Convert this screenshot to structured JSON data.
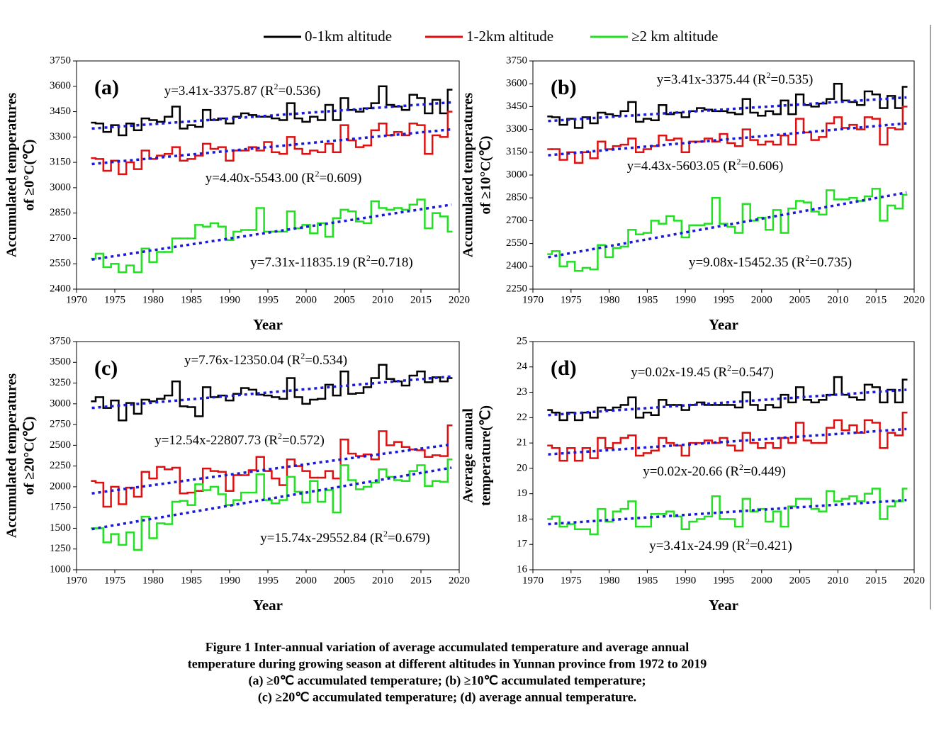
{
  "legend": [
    "0-1km altitude",
    "1-2km altitude",
    "≥2 km altitude"
  ],
  "chart_data": [
    {
      "type": "step",
      "panel": "(a)",
      "ylabel": [
        "Accumulated temperatures",
        "of ≥0°C(℃)"
      ],
      "xlabel": "Year",
      "xlim": [
        1970,
        2020
      ],
      "xticks": [
        1970,
        1975,
        1980,
        1985,
        1990,
        1995,
        2000,
        2005,
        2010,
        2015,
        2020
      ],
      "ylim": [
        2400,
        3750
      ],
      "yticks": [
        2400,
        2550,
        2700,
        2850,
        3000,
        3150,
        3300,
        3450,
        3600,
        3750
      ],
      "x0": 1972,
      "trend_color": "#1a1ad8",
      "series": [
        {
          "name": "0-1km altitude",
          "color": "#000000",
          "values": [
            3385,
            3380,
            3330,
            3370,
            3310,
            3380,
            3340,
            3410,
            3400,
            3390,
            3420,
            3480,
            3350,
            3370,
            3360,
            3460,
            3400,
            3410,
            3380,
            3420,
            3440,
            3430,
            3420,
            3420,
            3410,
            3400,
            3500,
            3410,
            3390,
            3420,
            3400,
            3490,
            3400,
            3530,
            3460,
            3450,
            3470,
            3500,
            3600,
            3490,
            3480,
            3460,
            3550,
            3530,
            3440,
            3520,
            3440,
            3580
          ],
          "trend": {
            "x": [
              1972,
              2019
            ],
            "values": [
              3350,
              3505
            ]
          },
          "equation": {
            "text": "y=3.41x-3375.87 (R",
            "sup": "2",
            "rest": "=0.536)"
          }
        },
        {
          "name": "1-2km altitude",
          "color": "#e01010",
          "values": [
            3175,
            3170,
            3100,
            3160,
            3080,
            3150,
            3110,
            3220,
            3170,
            3190,
            3200,
            3240,
            3160,
            3170,
            3190,
            3260,
            3230,
            3240,
            3160,
            3220,
            3220,
            3240,
            3220,
            3270,
            3210,
            3200,
            3300,
            3230,
            3200,
            3220,
            3210,
            3260,
            3210,
            3370,
            3280,
            3240,
            3250,
            3340,
            3380,
            3310,
            3330,
            3310,
            3380,
            3370,
            3200,
            3310,
            3300,
            3450
          ],
          "trend": {
            "x": [
              1972,
              2019
            ],
            "values": [
              3140,
              3345
            ]
          },
          "equation": {
            "text": "y=4.40x-5543.00 (R",
            "sup": "2",
            "rest": "=0.609)"
          }
        },
        {
          "name": "≥2 km altitude",
          "color": "#22e022",
          "values": [
            2580,
            2610,
            2530,
            2550,
            2500,
            2540,
            2500,
            2640,
            2560,
            2620,
            2620,
            2700,
            2700,
            2700,
            2780,
            2770,
            2790,
            2770,
            2690,
            2740,
            2750,
            2750,
            2880,
            2740,
            2740,
            2740,
            2860,
            2760,
            2780,
            2730,
            2790,
            2710,
            2820,
            2870,
            2860,
            2800,
            2790,
            2920,
            2880,
            2870,
            2880,
            2870,
            2900,
            2930,
            2760,
            2850,
            2830,
            2740
          ],
          "trend": {
            "x": [
              1972,
              2019
            ],
            "values": [
              2575,
              2900
            ]
          },
          "equation": {
            "text": "y=7.31x-11835.19 (R",
            "sup": "2",
            "rest": "=0.718)"
          }
        }
      ]
    },
    {
      "type": "step",
      "panel": "(b)",
      "ylabel": [
        "Accumulated temperatures",
        "of ≥10°C(℃)"
      ],
      "xlabel": "Year",
      "xlim": [
        1970,
        2020
      ],
      "xticks": [
        1970,
        1975,
        1980,
        1985,
        1990,
        1995,
        2000,
        2005,
        2010,
        2015,
        2020
      ],
      "ylim": [
        2250,
        3750
      ],
      "yticks": [
        2250,
        2400,
        2550,
        2700,
        2850,
        3000,
        3150,
        3300,
        3450,
        3600,
        3750
      ],
      "x0": 1972,
      "trend_color": "#1a1ad8",
      "series": [
        {
          "color": "#000000",
          "values": [
            3385,
            3380,
            3330,
            3370,
            3310,
            3380,
            3340,
            3410,
            3400,
            3390,
            3420,
            3480,
            3350,
            3370,
            3360,
            3460,
            3400,
            3410,
            3380,
            3420,
            3440,
            3430,
            3420,
            3420,
            3410,
            3400,
            3500,
            3410,
            3390,
            3420,
            3400,
            3490,
            3400,
            3530,
            3460,
            3450,
            3470,
            3500,
            3600,
            3490,
            3480,
            3460,
            3550,
            3530,
            3440,
            3520,
            3440,
            3580
          ],
          "trend": {
            "x": [
              1972,
              2019
            ],
            "values": [
              3355,
              3510
            ]
          },
          "equation": {
            "text": "y=3.41x-3375.44 (R",
            "sup": "2",
            "rest": "=0.535)"
          }
        },
        {
          "color": "#e01010",
          "values": [
            3170,
            3170,
            3100,
            3150,
            3080,
            3150,
            3110,
            3220,
            3170,
            3190,
            3200,
            3240,
            3150,
            3170,
            3190,
            3260,
            3230,
            3240,
            3150,
            3220,
            3220,
            3240,
            3220,
            3270,
            3210,
            3190,
            3300,
            3230,
            3200,
            3220,
            3200,
            3260,
            3200,
            3370,
            3280,
            3230,
            3250,
            3340,
            3380,
            3310,
            3330,
            3300,
            3380,
            3370,
            3200,
            3310,
            3300,
            3450
          ],
          "trend": {
            "x": [
              1972,
              2019
            ],
            "values": [
              3130,
              3340
            ]
          },
          "equation": {
            "text": "y=4.43x-5603.05 (R",
            "sup": "2",
            "rest": "=0.606)"
          }
        },
        {
          "color": "#22e022",
          "values": [
            2480,
            2500,
            2400,
            2430,
            2370,
            2390,
            2380,
            2540,
            2460,
            2520,
            2530,
            2640,
            2610,
            2620,
            2700,
            2680,
            2730,
            2700,
            2590,
            2670,
            2670,
            2680,
            2850,
            2680,
            2660,
            2620,
            2810,
            2700,
            2720,
            2640,
            2770,
            2620,
            2780,
            2830,
            2820,
            2760,
            2740,
            2900,
            2840,
            2840,
            2850,
            2830,
            2860,
            2910,
            2700,
            2800,
            2780,
            2870
          ],
          "trend": {
            "x": [
              1972,
              2019
            ],
            "values": [
              2460,
              2885
            ]
          },
          "equation": {
            "text": "y=9.08x-15452.35 (R",
            "sup": "2",
            "rest": "=0.735)"
          }
        }
      ]
    },
    {
      "type": "step",
      "panel": "(c)",
      "ylabel": [
        "Accumulated temperatures",
        "of ≥20°C(℃)"
      ],
      "xlabel": "Year",
      "xlim": [
        1970,
        2020
      ],
      "xticks": [
        1970,
        1975,
        1980,
        1985,
        1990,
        1995,
        2000,
        2005,
        2010,
        2015,
        2020
      ],
      "ylim": [
        1000,
        3750
      ],
      "yticks": [
        1000,
        1250,
        1500,
        1750,
        2000,
        2250,
        2500,
        2750,
        3000,
        3250,
        3500,
        3750
      ],
      "x0": 1972,
      "trend_color": "#1a1ad8",
      "series": [
        {
          "color": "#000000",
          "values": [
            3030,
            3080,
            2950,
            3040,
            2800,
            3010,
            2880,
            3050,
            3030,
            3060,
            3100,
            3270,
            2970,
            2960,
            2850,
            3200,
            3080,
            3100,
            3040,
            3120,
            3190,
            3170,
            3110,
            3100,
            3080,
            3060,
            3310,
            3080,
            3000,
            3050,
            3060,
            3230,
            3100,
            3390,
            3120,
            3130,
            3200,
            3310,
            3470,
            3300,
            3270,
            3220,
            3340,
            3390,
            3260,
            3320,
            3270,
            3310
          ],
          "trend": {
            "x": [
              1972,
              2019
            ],
            "values": [
              2950,
              3330
            ]
          },
          "equation": {
            "text": "y=7.76x-12350.04 (R",
            "sup": "2",
            "rest": "=0.534)"
          }
        },
        {
          "color": "#e01010",
          "values": [
            2070,
            2050,
            1760,
            2000,
            1790,
            1990,
            1880,
            2180,
            2100,
            2240,
            2210,
            2230,
            1920,
            1930,
            1950,
            2220,
            2190,
            2180,
            1950,
            2140,
            2140,
            2200,
            2360,
            2190,
            2100,
            2020,
            2330,
            2250,
            2190,
            2110,
            2110,
            2190,
            2100,
            2570,
            2400,
            2370,
            2390,
            2330,
            2670,
            2500,
            2540,
            2480,
            2450,
            2440,
            2360,
            2380,
            2370,
            2740
          ],
          "trend": {
            "x": [
              1972,
              2019
            ],
            "values": [
              1920,
              2510
            ]
          },
          "equation": {
            "text": "y=12.54x-22807.73 (R",
            "sup": "2",
            "rest": "=0.572)"
          }
        },
        {
          "color": "#22e022",
          "values": [
            1500,
            1500,
            1330,
            1430,
            1300,
            1450,
            1240,
            1640,
            1380,
            1560,
            1550,
            1820,
            1830,
            1780,
            2030,
            1960,
            2000,
            1910,
            1780,
            1840,
            1930,
            1930,
            2150,
            1840,
            1800,
            1840,
            2120,
            1940,
            1810,
            2070,
            1820,
            1960,
            1690,
            2260,
            2080,
            1970,
            2000,
            2050,
            2210,
            2120,
            2080,
            2070,
            2190,
            2260,
            2010,
            2070,
            2060,
            2330
          ],
          "trend": {
            "x": [
              1972,
              2019
            ],
            "values": [
              1490,
              2230
            ]
          },
          "equation": {
            "text": "y=15.74x-29552.84 (R",
            "sup": "2",
            "rest": "=0.679)"
          }
        }
      ]
    },
    {
      "type": "step",
      "panel": "(d)",
      "ylabel": [
        "Average annual",
        "temperature(℃)"
      ],
      "xlabel": "Year",
      "xlim": [
        1970,
        2020
      ],
      "xticks": [
        1970,
        1975,
        1980,
        1985,
        1990,
        1995,
        2000,
        2005,
        2010,
        2015,
        2020
      ],
      "ylim": [
        16,
        25
      ],
      "yticks": [
        16,
        17,
        18,
        19,
        20,
        21,
        22,
        23,
        24,
        25
      ],
      "x0": 1972,
      "trend_color": "#1a1ad8",
      "series": [
        {
          "color": "#000000",
          "values": [
            22.3,
            22.2,
            21.9,
            22.2,
            21.9,
            22.2,
            22.0,
            22.4,
            22.3,
            22.4,
            22.5,
            22.8,
            22.0,
            22.2,
            22.1,
            22.7,
            22.5,
            22.5,
            22.3,
            22.5,
            22.6,
            22.5,
            22.5,
            22.5,
            22.5,
            22.4,
            23.0,
            22.5,
            22.3,
            22.5,
            22.4,
            22.9,
            22.6,
            23.2,
            22.7,
            22.6,
            22.7,
            22.9,
            23.6,
            22.9,
            22.8,
            22.7,
            23.3,
            23.2,
            22.6,
            23.1,
            22.6,
            23.5
          ],
          "trend": {
            "x": [
              1972,
              2019
            ],
            "values": [
              22.1,
              23.1
            ]
          },
          "equation": {
            "text": "y=0.02x-19.45 (R",
            "sup": "2",
            "rest": "=0.547)"
          }
        },
        {
          "color": "#e01010",
          "values": [
            20.9,
            20.8,
            20.3,
            20.8,
            20.3,
            20.8,
            20.4,
            21.2,
            20.8,
            21.0,
            21.2,
            21.3,
            20.5,
            20.6,
            20.7,
            21.2,
            21.0,
            20.9,
            20.5,
            21.0,
            21.0,
            21.1,
            21.0,
            21.2,
            20.9,
            20.7,
            21.4,
            21.0,
            20.8,
            21.0,
            20.8,
            21.2,
            21.0,
            21.8,
            21.1,
            21.0,
            21.0,
            21.6,
            21.9,
            21.5,
            21.7,
            21.4,
            21.9,
            21.8,
            20.8,
            21.4,
            21.3,
            22.2
          ],
          "trend": {
            "x": [
              1972,
              2019
            ],
            "values": [
              20.55,
              21.55
            ]
          },
          "equation": {
            "text": "y=0.02x-20.66 (R",
            "sup": "2",
            "rest": "=0.449)"
          }
        },
        {
          "color": "#22e022",
          "values": [
            18.0,
            18.1,
            17.7,
            17.8,
            17.6,
            17.6,
            17.4,
            18.4,
            17.9,
            18.3,
            18.4,
            18.7,
            17.7,
            17.7,
            18.2,
            18.2,
            18.3,
            18.1,
            17.6,
            17.9,
            18.0,
            18.1,
            18.9,
            18.0,
            18.0,
            17.7,
            18.8,
            18.3,
            18.4,
            17.9,
            18.3,
            17.7,
            18.5,
            18.8,
            18.8,
            18.4,
            18.3,
            19.1,
            18.7,
            18.8,
            18.9,
            18.7,
            19.0,
            19.2,
            18.0,
            18.5,
            18.7,
            19.2
          ],
          "trend": {
            "x": [
              1972,
              2019
            ],
            "values": [
              17.8,
              18.75
            ]
          },
          "equation": {
            "text": "y=3.41x-24.99 (R",
            "sup": "2",
            "rest": "=0.421)"
          }
        }
      ]
    }
  ],
  "caption": [
    "Figure 1  Inter-annual variation of average accumulated temperature and average annual",
    "temperature during growing season at different altitudes in Yunnan province from 1972 to 2019",
    "(a) ≥0℃ accumulated temperature; (b) ≥10℃ accumulated temperature;",
    "(c) ≥20℃ accumulated temperature; (d) average annual temperature."
  ]
}
